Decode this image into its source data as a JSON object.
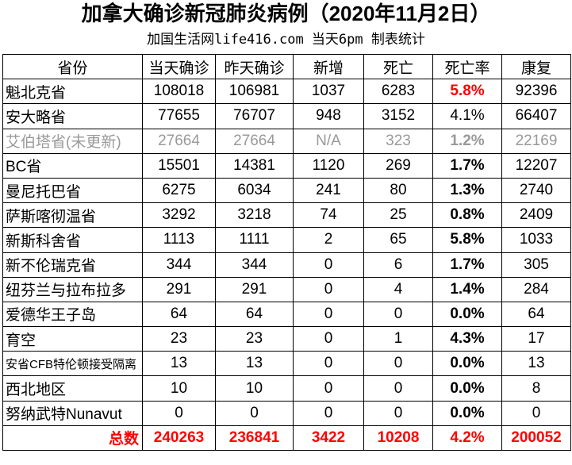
{
  "title": "加拿大确诊新冠肺炎病例（2020年11月2日）",
  "subtitle": "加国生活网life416.com 当天6pm 制表统计",
  "headers": [
    "省份",
    "当天确诊",
    "昨天确诊",
    "新增",
    "死亡",
    "死亡率",
    "康复"
  ],
  "rows": [
    [
      "魁北克省",
      "108018",
      "106981",
      "1037",
      "6283",
      "5.8%",
      "92396"
    ],
    [
      "安大略省",
      "77655",
      "76707",
      "948",
      "3152",
      "4.1%",
      "66407"
    ],
    [
      "艾伯塔省(未更新)",
      "27664",
      "27664",
      "N/A",
      "323",
      "1.2%",
      "22169"
    ],
    [
      "BC省",
      "15501",
      "14381",
      "1120",
      "269",
      "1.7%",
      "12207"
    ],
    [
      "曼尼托巴省",
      "6275",
      "6034",
      "241",
      "80",
      "1.3%",
      "2740"
    ],
    [
      "萨斯喀彻温省",
      "3292",
      "3218",
      "74",
      "25",
      "0.8%",
      "2409"
    ],
    [
      "新斯科舍省",
      "1113",
      "1111",
      "2",
      "65",
      "5.8%",
      "1033"
    ],
    [
      "新不伦瑞克省",
      "344",
      "344",
      "0",
      "6",
      "1.7%",
      "305"
    ],
    [
      "纽芬兰与拉布拉多",
      "291",
      "291",
      "0",
      "4",
      "1.4%",
      "284"
    ],
    [
      "爱德华王子岛",
      "64",
      "64",
      "0",
      "0",
      "0.0%",
      "64"
    ],
    [
      "育空",
      "23",
      "23",
      "0",
      "1",
      "4.3%",
      "17"
    ],
    [
      "安省CFB特伦顿接受隔离",
      "13",
      "13",
      "0",
      "0",
      "0.0%",
      "13"
    ],
    [
      "西北地区",
      "10",
      "10",
      "0",
      "0",
      "0.0%",
      "8"
    ],
    [
      "努纳武特Nunavut",
      "0",
      "0",
      "0",
      "0",
      "0.0%",
      "0"
    ]
  ],
  "total": [
    "总数",
    "240263",
    "236841",
    "3422",
    "10208",
    "4.2%",
    "200052"
  ],
  "colors": {
    "highlight": "#ff0000",
    "stale": "#999999"
  }
}
